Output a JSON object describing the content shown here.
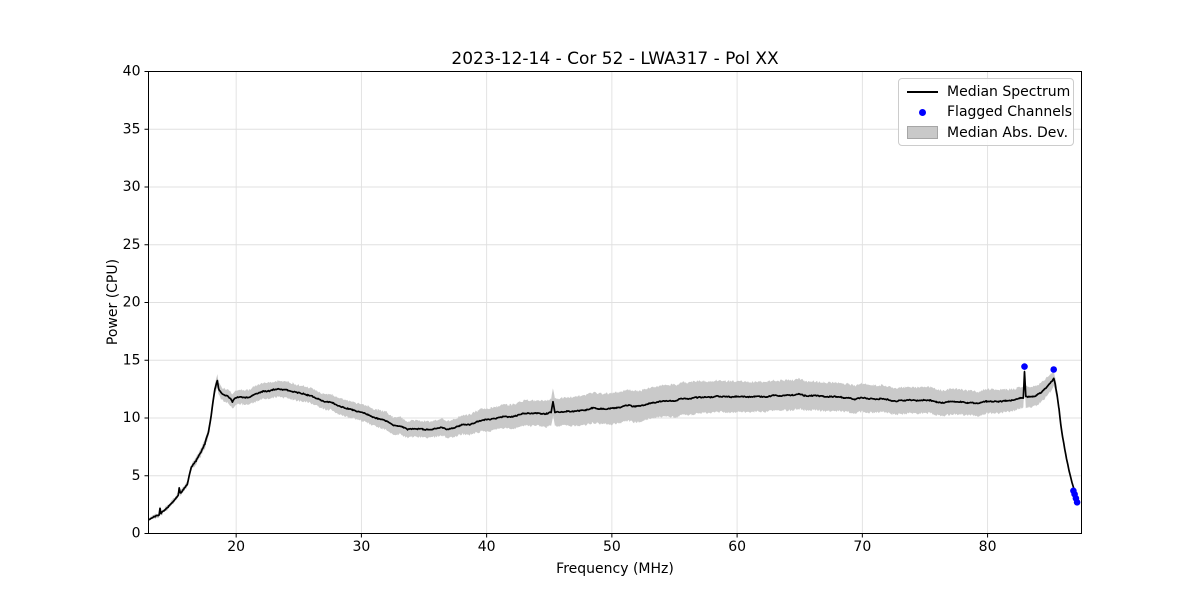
{
  "figure": {
    "background": "#ffffff"
  },
  "chart_data": {
    "type": "line",
    "title": "2023-12-14 - Cor 52 - LWA317 - Pol XX",
    "xlabel": "Frequency (MHz)",
    "ylabel": "Power (CPU)",
    "xlim": [
      13.0,
      87.5
    ],
    "ylim": [
      0,
      40
    ],
    "xticks": [
      20,
      30,
      40,
      50,
      60,
      70,
      80
    ],
    "yticks": [
      0,
      5,
      10,
      15,
      20,
      25,
      30,
      35,
      40
    ],
    "grid": true,
    "grid_color": "#e0e0e0",
    "axis_color": "#000000",
    "legend": {
      "position": "upper right",
      "entries": [
        {
          "label": "Median Spectrum",
          "type": "line",
          "color": "#000000"
        },
        {
          "label": "Flagged Channels",
          "type": "marker",
          "color": "#0000ff"
        },
        {
          "label": "Median Abs. Dev.",
          "type": "patch",
          "color": "#c9c9c9"
        }
      ]
    },
    "series": [
      {
        "name": "Median Spectrum",
        "type": "line",
        "color": "#000000",
        "linewidth": 1.7,
        "points": [
          [
            13.05,
            1.2
          ],
          [
            13.3,
            1.35
          ],
          [
            13.6,
            1.5
          ],
          [
            13.85,
            1.6
          ],
          [
            13.92,
            2.2
          ],
          [
            14.0,
            1.75
          ],
          [
            14.3,
            2.05
          ],
          [
            14.6,
            2.35
          ],
          [
            14.9,
            2.7
          ],
          [
            15.2,
            3.1
          ],
          [
            15.38,
            3.35
          ],
          [
            15.45,
            3.95
          ],
          [
            15.55,
            3.5
          ],
          [
            15.8,
            3.85
          ],
          [
            16.1,
            4.3
          ],
          [
            16.4,
            5.7
          ],
          [
            16.8,
            6.3
          ],
          [
            17.2,
            7.1
          ],
          [
            17.5,
            7.8
          ],
          [
            17.8,
            8.9
          ],
          [
            18.0,
            10.2
          ],
          [
            18.15,
            11.4
          ],
          [
            18.3,
            12.5
          ],
          [
            18.42,
            13.05
          ],
          [
            18.5,
            13.3
          ],
          [
            18.6,
            12.55
          ],
          [
            18.8,
            12.2
          ],
          [
            19.0,
            12.05
          ],
          [
            19.3,
            11.95
          ],
          [
            19.55,
            11.7
          ],
          [
            19.7,
            11.45
          ],
          [
            19.85,
            11.7
          ],
          [
            20.1,
            11.8
          ],
          [
            20.5,
            11.75
          ],
          [
            20.9,
            11.8
          ],
          [
            21.3,
            11.9
          ],
          [
            21.7,
            12.05
          ],
          [
            22.1,
            12.2
          ],
          [
            22.5,
            12.3
          ],
          [
            22.9,
            12.4
          ],
          [
            23.3,
            12.45
          ],
          [
            23.7,
            12.45
          ],
          [
            24.1,
            12.4
          ],
          [
            24.5,
            12.3
          ],
          [
            24.9,
            12.2
          ],
          [
            25.3,
            12.1
          ],
          [
            25.7,
            11.95
          ],
          [
            26.1,
            11.85
          ],
          [
            26.5,
            11.7
          ],
          [
            26.9,
            11.5
          ],
          [
            27.3,
            11.35
          ],
          [
            27.7,
            11.25
          ],
          [
            28.1,
            11.1
          ],
          [
            28.5,
            11.0
          ],
          [
            28.9,
            10.9
          ],
          [
            29.3,
            10.75
          ],
          [
            29.7,
            10.6
          ],
          [
            30.1,
            10.45
          ],
          [
            30.5,
            10.3
          ],
          [
            30.9,
            10.1
          ],
          [
            31.3,
            9.95
          ],
          [
            31.7,
            9.8
          ],
          [
            32.1,
            9.6
          ],
          [
            32.5,
            9.45
          ],
          [
            32.9,
            9.3
          ],
          [
            33.3,
            9.2
          ],
          [
            33.7,
            9.1
          ],
          [
            34.1,
            9.05
          ],
          [
            34.5,
            9.0
          ],
          [
            34.9,
            9.0
          ],
          [
            35.3,
            9.0
          ],
          [
            35.7,
            9.05
          ],
          [
            36.1,
            9.1
          ],
          [
            36.5,
            9.1
          ],
          [
            36.9,
            9.1
          ],
          [
            37.3,
            9.2
          ],
          [
            37.8,
            9.3
          ],
          [
            38.3,
            9.4
          ],
          [
            38.8,
            9.5
          ],
          [
            39.3,
            9.65
          ],
          [
            39.8,
            9.8
          ],
          [
            40.3,
            9.9
          ],
          [
            40.8,
            10.0
          ],
          [
            41.3,
            10.1
          ],
          [
            41.8,
            10.15
          ],
          [
            42.3,
            10.2
          ],
          [
            42.8,
            10.3
          ],
          [
            43.3,
            10.35
          ],
          [
            43.8,
            10.4
          ],
          [
            44.3,
            10.4
          ],
          [
            44.8,
            10.45
          ],
          [
            45.15,
            10.5
          ],
          [
            45.3,
            11.4
          ],
          [
            45.45,
            10.5
          ],
          [
            45.9,
            10.55
          ],
          [
            46.4,
            10.6
          ],
          [
            46.9,
            10.65
          ],
          [
            47.4,
            10.7
          ],
          [
            47.9,
            10.75
          ],
          [
            48.4,
            10.8
          ],
          [
            48.9,
            10.8
          ],
          [
            49.4,
            10.85
          ],
          [
            49.9,
            10.9
          ],
          [
            50.4,
            10.95
          ],
          [
            50.9,
            11.0
          ],
          [
            51.4,
            11.05
          ],
          [
            51.9,
            11.1
          ],
          [
            52.4,
            11.15
          ],
          [
            52.9,
            11.2
          ],
          [
            53.4,
            11.3
          ],
          [
            53.9,
            11.35
          ],
          [
            54.4,
            11.4
          ],
          [
            54.9,
            11.5
          ],
          [
            55.2,
            11.55
          ],
          [
            55.45,
            11.7
          ],
          [
            55.9,
            11.7
          ],
          [
            56.4,
            11.75
          ],
          [
            56.9,
            11.75
          ],
          [
            57.4,
            11.8
          ],
          [
            57.9,
            11.8
          ],
          [
            58.4,
            11.85
          ],
          [
            58.9,
            11.85
          ],
          [
            59.4,
            11.9
          ],
          [
            59.9,
            11.9
          ],
          [
            60.4,
            11.9
          ],
          [
            60.9,
            11.85
          ],
          [
            61.4,
            11.9
          ],
          [
            61.9,
            11.9
          ],
          [
            62.4,
            11.85
          ],
          [
            62.9,
            11.9
          ],
          [
            63.4,
            11.9
          ],
          [
            63.9,
            11.95
          ],
          [
            64.4,
            11.95
          ],
          [
            64.9,
            12.0
          ],
          [
            65.4,
            11.95
          ],
          [
            65.9,
            12.0
          ],
          [
            66.4,
            12.0
          ],
          [
            66.9,
            11.95
          ],
          [
            67.4,
            11.9
          ],
          [
            67.9,
            11.85
          ],
          [
            68.3,
            11.8
          ],
          [
            68.5,
            11.7
          ],
          [
            68.9,
            11.7
          ],
          [
            69.4,
            11.7
          ],
          [
            69.9,
            11.7
          ],
          [
            70.4,
            11.65
          ],
          [
            70.9,
            11.65
          ],
          [
            71.4,
            11.6
          ],
          [
            71.9,
            11.6
          ],
          [
            72.4,
            11.55
          ],
          [
            72.9,
            11.55
          ],
          [
            73.4,
            11.5
          ],
          [
            73.9,
            11.5
          ],
          [
            74.4,
            11.5
          ],
          [
            74.9,
            11.45
          ],
          [
            75.4,
            11.45
          ],
          [
            75.9,
            11.45
          ],
          [
            76.4,
            11.4
          ],
          [
            76.9,
            11.4
          ],
          [
            77.4,
            11.4
          ],
          [
            77.9,
            11.4
          ],
          [
            78.4,
            11.35
          ],
          [
            78.9,
            11.35
          ],
          [
            79.4,
            11.35
          ],
          [
            79.9,
            11.35
          ],
          [
            80.4,
            11.4
          ],
          [
            80.9,
            11.45
          ],
          [
            81.4,
            11.5
          ],
          [
            81.9,
            11.55
          ],
          [
            82.3,
            11.6
          ],
          [
            82.6,
            11.65
          ],
          [
            82.85,
            11.7
          ],
          [
            82.95,
            14.0
          ],
          [
            83.05,
            11.8
          ],
          [
            83.3,
            11.85
          ],
          [
            83.6,
            11.95
          ],
          [
            83.9,
            12.05
          ],
          [
            84.2,
            12.25
          ],
          [
            84.5,
            12.45
          ],
          [
            84.8,
            12.75
          ],
          [
            85.0,
            13.0
          ],
          [
            85.15,
            13.2
          ],
          [
            85.28,
            13.45
          ],
          [
            85.4,
            12.95
          ],
          [
            85.55,
            12.0
          ],
          [
            85.7,
            10.8
          ],
          [
            85.85,
            9.4
          ],
          [
            86.0,
            8.3
          ],
          [
            86.15,
            7.4
          ],
          [
            86.3,
            6.5
          ],
          [
            86.5,
            5.5
          ],
          [
            86.7,
            4.6
          ],
          [
            86.85,
            4.0
          ],
          [
            87.0,
            3.5
          ],
          [
            87.1,
            3.2
          ],
          [
            87.2,
            3.05
          ]
        ]
      },
      {
        "name": "Median Abs. Dev.",
        "type": "band",
        "color": "#c9c9c9",
        "halfwidth_points": [
          [
            13.05,
            0.12
          ],
          [
            14,
            0.18
          ],
          [
            15,
            0.2
          ],
          [
            16,
            0.25
          ],
          [
            17,
            0.3
          ],
          [
            17.8,
            0.4
          ],
          [
            18.3,
            0.5
          ],
          [
            19,
            0.55
          ],
          [
            20,
            0.6
          ],
          [
            21,
            0.65
          ],
          [
            22,
            0.7
          ],
          [
            23,
            0.7
          ],
          [
            24,
            0.7
          ],
          [
            25,
            0.68
          ],
          [
            26,
            0.65
          ],
          [
            27,
            0.65
          ],
          [
            28,
            0.68
          ],
          [
            29,
            0.7
          ],
          [
            30,
            0.72
          ],
          [
            31,
            0.75
          ],
          [
            32,
            0.75
          ],
          [
            33,
            0.72
          ],
          [
            34,
            0.7
          ],
          [
            35,
            0.7
          ],
          [
            36,
            0.7
          ],
          [
            37,
            0.75
          ],
          [
            38,
            0.8
          ],
          [
            39,
            0.9
          ],
          [
            40,
            1.0
          ],
          [
            41,
            1.0
          ],
          [
            42,
            1.05
          ],
          [
            43,
            1.1
          ],
          [
            44,
            1.1
          ],
          [
            45,
            1.15
          ],
          [
            46,
            1.2
          ],
          [
            47,
            1.25
          ],
          [
            48,
            1.3
          ],
          [
            49,
            1.3
          ],
          [
            50,
            1.35
          ],
          [
            51,
            1.35
          ],
          [
            52,
            1.35
          ],
          [
            53,
            1.35
          ],
          [
            54,
            1.35
          ],
          [
            55,
            1.4
          ],
          [
            56,
            1.4
          ],
          [
            57,
            1.4
          ],
          [
            58,
            1.35
          ],
          [
            59,
            1.35
          ],
          [
            60,
            1.35
          ],
          [
            61,
            1.3
          ],
          [
            62,
            1.3
          ],
          [
            63,
            1.3
          ],
          [
            64,
            1.3
          ],
          [
            65,
            1.28
          ],
          [
            66,
            1.25
          ],
          [
            67,
            1.25
          ],
          [
            68,
            1.22
          ],
          [
            69,
            1.2
          ],
          [
            70,
            1.2
          ],
          [
            71,
            1.18
          ],
          [
            72,
            1.15
          ],
          [
            73,
            1.15
          ],
          [
            74,
            1.15
          ],
          [
            75,
            1.12
          ],
          [
            76,
            1.1
          ],
          [
            77,
            1.1
          ],
          [
            78,
            1.08
          ],
          [
            79,
            1.05
          ],
          [
            80,
            1.05
          ],
          [
            81,
            1.0
          ],
          [
            82,
            0.95
          ],
          [
            83,
            0.9
          ],
          [
            84,
            0.85
          ],
          [
            85,
            0.75
          ],
          [
            85.4,
            0.6
          ],
          [
            85.7,
            0.35
          ],
          [
            86,
            0.2
          ],
          [
            86.5,
            0.12
          ],
          [
            87.2,
            0.08
          ]
        ]
      },
      {
        "name": "Flagged Channels",
        "type": "scatter",
        "color": "#0000ff",
        "marker_radius": 3.3,
        "points": [
          [
            82.95,
            14.45
          ],
          [
            85.28,
            14.2
          ],
          [
            86.85,
            3.7
          ],
          [
            86.95,
            3.4
          ],
          [
            87.05,
            3.05
          ],
          [
            87.15,
            2.7
          ]
        ]
      }
    ]
  }
}
